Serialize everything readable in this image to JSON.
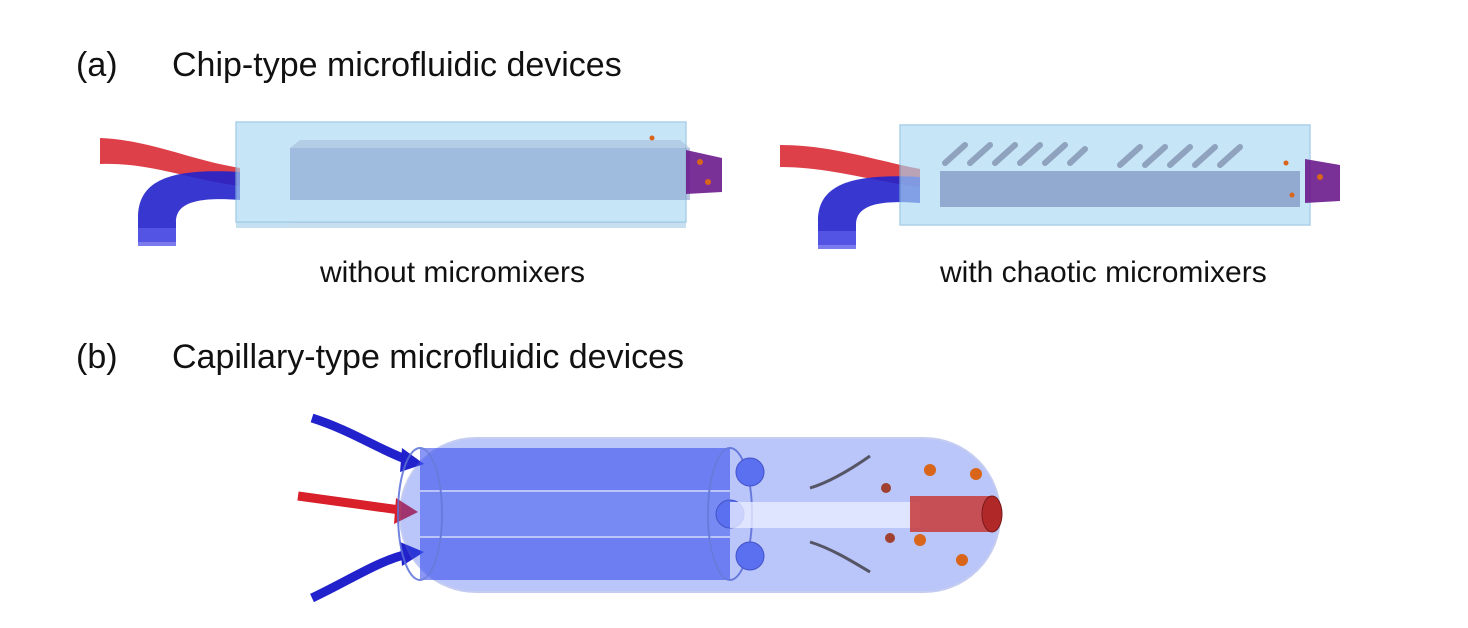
{
  "panel_a": {
    "letter": "(a)",
    "title": "Chip-type microfluidic devices",
    "captions": {
      "left": "without micromixers",
      "right": "with chaotic micromixers"
    }
  },
  "panel_b": {
    "letter": "(b)",
    "title": "Capillary-type microfluidic devices"
  },
  "colors": {
    "red_stream": "#d81f2a",
    "blue_stream": "#2222cc",
    "mixed_stream": "#6a1a8c",
    "chip_body": "#a9d8f2",
    "capillary_body": "#3b5cf0",
    "particle": "#d9651a"
  }
}
